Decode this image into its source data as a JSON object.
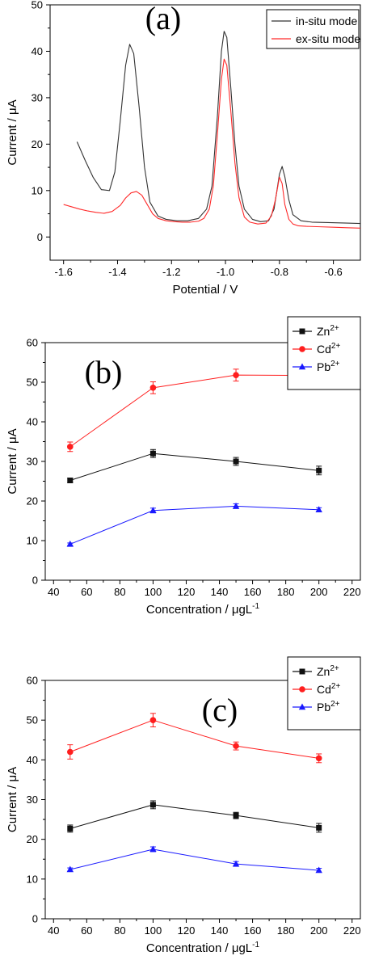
{
  "chart_data": [
    {
      "type": "line",
      "panel_label": "(a)",
      "xlabel": "Potential / V",
      "ylabel": "Current / μA",
      "xlim": [
        -1.65,
        -0.5
      ],
      "ylim": [
        -5,
        50
      ],
      "xticks": [
        -1.6,
        -1.4,
        -1.2,
        -1.0,
        -0.8,
        -0.6
      ],
      "xtick_labels": [
        "-1.6",
        "-1.4",
        "-1.2",
        "-1.0",
        "-0.8",
        "-0.6"
      ],
      "yticks": [
        0,
        10,
        20,
        30,
        40,
        50
      ],
      "ytick_labels": [
        "0",
        "10",
        "20",
        "30",
        "40",
        "50"
      ],
      "legend_position": "top-right",
      "series": [
        {
          "name": "in-situ mode",
          "color": "#333333",
          "x": [
            -1.55,
            -1.52,
            -1.49,
            -1.46,
            -1.43,
            -1.41,
            -1.39,
            -1.37,
            -1.355,
            -1.34,
            -1.32,
            -1.3,
            -1.28,
            -1.25,
            -1.22,
            -1.18,
            -1.14,
            -1.1,
            -1.07,
            -1.05,
            -1.03,
            -1.015,
            -1.005,
            -0.995,
            -0.98,
            -0.965,
            -0.95,
            -0.93,
            -0.9,
            -0.87,
            -0.84,
            -0.82,
            -0.8,
            -0.79,
            -0.78,
            -0.765,
            -0.75,
            -0.72,
            -0.68,
            -0.62,
            -0.55,
            -0.5
          ],
          "y": [
            20.5,
            16.5,
            12.8,
            10.2,
            10.0,
            14.0,
            25.0,
            37.0,
            41.5,
            39.5,
            28.0,
            15.0,
            7.5,
            4.5,
            3.8,
            3.5,
            3.5,
            4.0,
            6.0,
            11.0,
            26.0,
            40.0,
            44.3,
            43.0,
            32.0,
            20.0,
            11.0,
            6.0,
            3.8,
            3.3,
            3.5,
            6.0,
            13.5,
            15.2,
            13.0,
            8.0,
            4.8,
            3.5,
            3.2,
            3.1,
            3.0,
            2.9
          ]
        },
        {
          "name": "ex-situ mode",
          "color": "#ff2a2a",
          "x": [
            -1.6,
            -1.57,
            -1.54,
            -1.51,
            -1.48,
            -1.45,
            -1.42,
            -1.39,
            -1.37,
            -1.35,
            -1.33,
            -1.31,
            -1.29,
            -1.27,
            -1.25,
            -1.22,
            -1.19,
            -1.16,
            -1.13,
            -1.1,
            -1.08,
            -1.06,
            -1.045,
            -1.03,
            -1.015,
            -1.005,
            -0.995,
            -0.98,
            -0.965,
            -0.95,
            -0.93,
            -0.91,
            -0.88,
            -0.85,
            -0.83,
            -0.815,
            -0.8,
            -0.79,
            -0.78,
            -0.765,
            -0.75,
            -0.73,
            -0.7,
            -0.65,
            -0.6,
            -0.55,
            -0.5
          ],
          "y": [
            7.0,
            6.5,
            6.0,
            5.6,
            5.3,
            5.1,
            5.5,
            6.8,
            8.4,
            9.5,
            9.8,
            9.0,
            7.0,
            5.0,
            4.0,
            3.5,
            3.3,
            3.2,
            3.2,
            3.4,
            4.0,
            6.0,
            11.0,
            22.0,
            34.0,
            38.3,
            37.0,
            27.0,
            16.0,
            8.5,
            4.3,
            3.2,
            2.8,
            3.0,
            4.5,
            8.0,
            12.9,
            11.5,
            7.0,
            3.8,
            2.8,
            2.4,
            2.3,
            2.2,
            2.1,
            2.0,
            1.9
          ]
        }
      ]
    },
    {
      "type": "line",
      "panel_label": "(b)",
      "xlabel": "Concentration / μgL",
      "xlabel_superscript": "-1",
      "ylabel": "Current / μA",
      "xlim": [
        35,
        225
      ],
      "ylim": [
        0,
        60
      ],
      "xticks": [
        40,
        60,
        80,
        100,
        120,
        140,
        160,
        180,
        200,
        220
      ],
      "xtick_labels": [
        "40",
        "60",
        "80",
        "100",
        "120",
        "140",
        "160",
        "180",
        "200",
        "220"
      ],
      "yticks": [
        0,
        10,
        20,
        30,
        40,
        50,
        60
      ],
      "ytick_labels": [
        "0",
        "10",
        "20",
        "30",
        "40",
        "50",
        "60"
      ],
      "legend_position": "top-right",
      "x": [
        50,
        100,
        150,
        200
      ],
      "series": [
        {
          "name": "Zn",
          "superscript": "2+",
          "color": "#111111",
          "marker": "square",
          "values": [
            25.2,
            32.0,
            30.0,
            27.7
          ],
          "errors": [
            0.6,
            1.0,
            1.0,
            1.1
          ]
        },
        {
          "name": "Cd",
          "superscript": "2+",
          "color": "#ff1e1e",
          "marker": "circle",
          "values": [
            33.7,
            48.6,
            51.8,
            51.7
          ],
          "errors": [
            1.2,
            1.5,
            1.5,
            1.2
          ]
        },
        {
          "name": "Pb",
          "superscript": "2+",
          "color": "#1a1aff",
          "marker": "triangle",
          "values": [
            9.1,
            17.6,
            18.7,
            17.8
          ],
          "errors": [
            0.3,
            0.6,
            0.6,
            0.5
          ]
        }
      ]
    },
    {
      "type": "line",
      "panel_label": "(c)",
      "xlabel": "Concentration / μgL",
      "xlabel_superscript": "-1",
      "ylabel": "Current / μA",
      "xlim": [
        35,
        225
      ],
      "ylim": [
        0,
        60
      ],
      "xticks": [
        40,
        60,
        80,
        100,
        120,
        140,
        160,
        180,
        200,
        220
      ],
      "xtick_labels": [
        "40",
        "60",
        "80",
        "100",
        "120",
        "140",
        "160",
        "180",
        "200",
        "220"
      ],
      "yticks": [
        0,
        10,
        20,
        30,
        40,
        50,
        60
      ],
      "ytick_labels": [
        "0",
        "10",
        "20",
        "30",
        "40",
        "50",
        "60"
      ],
      "legend_position": "top-right",
      "x": [
        50,
        100,
        150,
        200
      ],
      "series": [
        {
          "name": "Zn",
          "superscript": "2+",
          "color": "#111111",
          "marker": "square",
          "values": [
            22.7,
            28.7,
            26.0,
            22.9
          ],
          "errors": [
            0.9,
            1.0,
            0.8,
            1.1
          ]
        },
        {
          "name": "Cd",
          "superscript": "2+",
          "color": "#ff1e1e",
          "marker": "circle",
          "values": [
            42.0,
            50.0,
            43.5,
            40.4
          ],
          "errors": [
            1.8,
            1.7,
            1.0,
            1.1
          ]
        },
        {
          "name": "Pb",
          "superscript": "2+",
          "color": "#1a1aff",
          "marker": "triangle",
          "values": [
            12.4,
            17.5,
            13.8,
            12.2
          ],
          "errors": [
            0.4,
            0.6,
            0.6,
            0.5
          ]
        }
      ]
    }
  ]
}
